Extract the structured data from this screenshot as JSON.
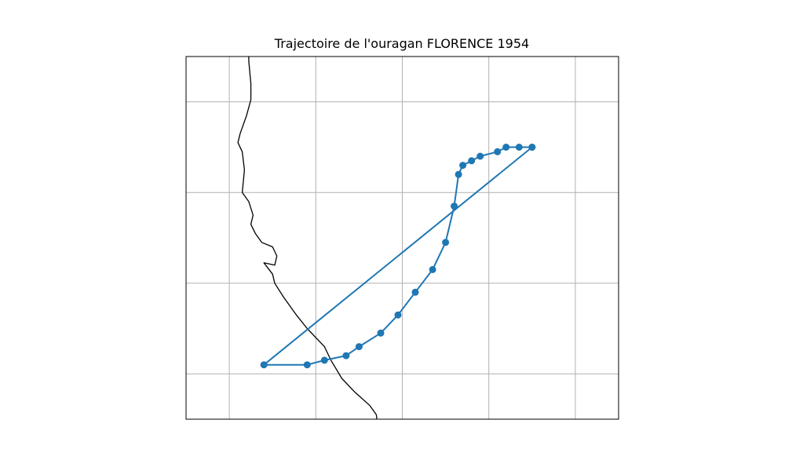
{
  "chart_data": {
    "type": "scatter",
    "title": "Trajectoire de l'ouragan FLORENCE 1954",
    "xlabel": "",
    "ylabel": "",
    "grid": true,
    "lon_range": [
      -100.0,
      -90.0
    ],
    "lat_range": [
      14.0,
      22.0
    ],
    "series": [
      {
        "color": "#1f77b4",
        "marker": "circle",
        "line": true,
        "points": [
          {
            "lon": -92.0,
            "lat": 20.0
          },
          {
            "lon": -92.3,
            "lat": 20.0
          },
          {
            "lon": -92.6,
            "lat": 20.0
          },
          {
            "lon": -92.8,
            "lat": 19.9
          },
          {
            "lon": -93.2,
            "lat": 19.8
          },
          {
            "lon": -93.4,
            "lat": 19.7
          },
          {
            "lon": -93.6,
            "lat": 19.6
          },
          {
            "lon": -93.7,
            "lat": 19.4
          },
          {
            "lon": -93.8,
            "lat": 18.7
          },
          {
            "lon": -94.0,
            "lat": 17.9
          },
          {
            "lon": -94.3,
            "lat": 17.3
          },
          {
            "lon": -94.7,
            "lat": 16.8
          },
          {
            "lon": -95.1,
            "lat": 16.3
          },
          {
            "lon": -95.5,
            "lat": 15.9
          },
          {
            "lon": -96.0,
            "lat": 15.6
          },
          {
            "lon": -96.3,
            "lat": 15.4
          },
          {
            "lon": -96.8,
            "lat": 15.3
          },
          {
            "lon": -97.2,
            "lat": 15.2
          },
          {
            "lon": -98.2,
            "lat": 15.2
          },
          {
            "lon": -92.0,
            "lat": 20.0
          }
        ]
      }
    ]
  },
  "map": {
    "coastline_color": "#000000",
    "grid_color": "#b0b0b0",
    "frame_color": "#000000",
    "coastline_points": [
      [
        -98.55,
        22.3
      ],
      [
        -98.55,
        21.9
      ],
      [
        -98.5,
        21.4
      ],
      [
        -98.5,
        21.05
      ],
      [
        -98.6,
        20.7
      ],
      [
        -98.75,
        20.3
      ],
      [
        -98.8,
        20.1
      ],
      [
        -98.7,
        19.9
      ],
      [
        -98.65,
        19.5
      ],
      [
        -98.7,
        19.0
      ],
      [
        -98.55,
        18.8
      ],
      [
        -98.45,
        18.5
      ],
      [
        -98.5,
        18.3
      ],
      [
        -98.4,
        18.1
      ],
      [
        -98.25,
        17.9
      ],
      [
        -98.0,
        17.8
      ],
      [
        -97.9,
        17.6
      ],
      [
        -97.95,
        17.4
      ],
      [
        -98.2,
        17.45
      ],
      [
        -98.0,
        17.2
      ],
      [
        -97.95,
        17.0
      ],
      [
        -97.75,
        16.7
      ],
      [
        -97.45,
        16.3
      ],
      [
        -97.2,
        16.0
      ],
      [
        -96.8,
        15.6
      ],
      [
        -96.65,
        15.3
      ],
      [
        -96.4,
        14.9
      ],
      [
        -96.1,
        14.6
      ],
      [
        -95.75,
        14.3
      ],
      [
        -95.6,
        14.1
      ],
      [
        -95.55,
        13.7
      ],
      [
        -95.45,
        13.5
      ],
      [
        -95.4,
        13.2
      ]
    ]
  }
}
